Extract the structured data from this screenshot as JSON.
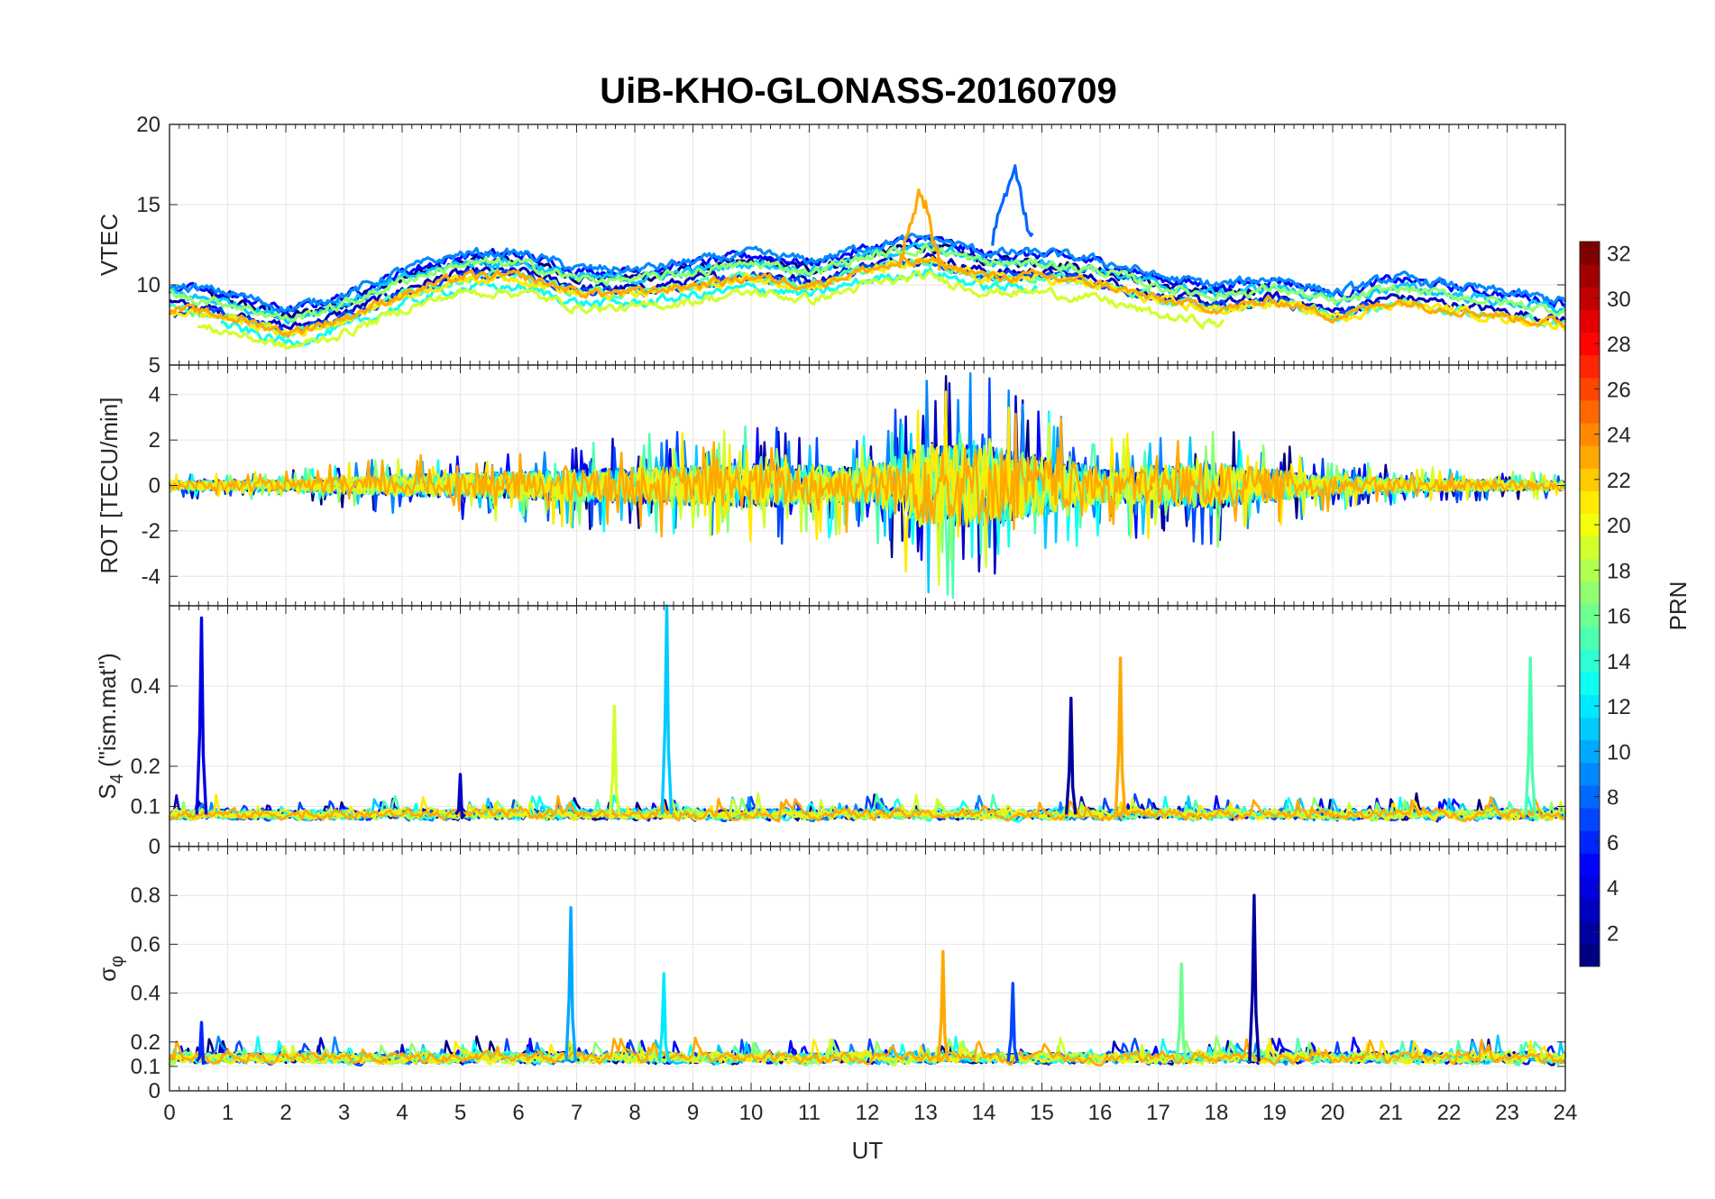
{
  "title": "UiB-KHO-GLONASS-20160709",
  "colorbar": {
    "label": "PRN",
    "ticks": [
      "2",
      "4",
      "6",
      "8",
      "10",
      "12",
      "14",
      "16",
      "18",
      "20",
      "22",
      "24",
      "26",
      "28",
      "30",
      "32"
    ],
    "range": [
      1,
      32
    ],
    "colormap": "jet"
  },
  "chart_data": [
    {
      "type": "line",
      "panel": "VTEC",
      "ylabel": "VTEC",
      "xlim": [
        0,
        24
      ],
      "ylim": [
        5,
        20
      ],
      "xticks": [
        0,
        1,
        2,
        3,
        4,
        5,
        6,
        7,
        8,
        9,
        10,
        11,
        12,
        13,
        14,
        15,
        16,
        17,
        18,
        19,
        20,
        21,
        22,
        23,
        24
      ],
      "yticks": [
        "5",
        "10",
        "15",
        "20"
      ],
      "grid": true,
      "description_of_series": "one line per GLONASS PRN, colour from PRN colourbar",
      "series_envelope": {
        "x": [
          0,
          1,
          2,
          3,
          4,
          5,
          6,
          7,
          8,
          9,
          10,
          11,
          12,
          13,
          14,
          15,
          16,
          17,
          18,
          19,
          20,
          21,
          22,
          23,
          24
        ],
        "typical": [
          9,
          8.5,
          7.5,
          8.5,
          10,
          11,
          11,
          10,
          10,
          10.5,
          11,
          10.5,
          11.5,
          12,
          11,
          11,
          10.5,
          9.5,
          9,
          9.5,
          8.5,
          9.5,
          9,
          8.5,
          8
        ],
        "peaks": [
          {
            "x": 12.9,
            "y": 16.2
          },
          {
            "x": 14.5,
            "y": 17.5
          }
        ]
      }
    },
    {
      "type": "line",
      "panel": "ROT",
      "ylabel": "ROT [TECU/min]",
      "xlim": [
        0,
        24
      ],
      "ylim": [
        -5.3,
        5.3
      ],
      "yticks": [
        "-4",
        "-2",
        "0",
        "2",
        "4"
      ],
      "grid": true,
      "series_envelope": {
        "x": [
          0,
          2,
          4,
          6,
          8,
          10,
          12,
          13,
          14,
          16,
          18,
          20,
          22,
          24
        ],
        "amplitude": [
          0.5,
          0.6,
          1.2,
          1.5,
          2,
          2.5,
          2,
          4.5,
          4.5,
          2,
          2.5,
          1,
          0.7,
          0.5
        ]
      }
    },
    {
      "type": "line",
      "panel": "S4",
      "ylabel": "S4 (\"ism.mat\")",
      "ylabel_main": "S",
      "ylabel_sub": "4",
      "ylabel_rest": " (\"ism.mat\")",
      "xlim": [
        0,
        24
      ],
      "ylim": [
        0,
        0.6
      ],
      "yticks": [
        "0",
        "0.1",
        "0.2",
        "0.4"
      ],
      "grid": true,
      "spikes": [
        {
          "x": 0.55,
          "y": 0.57,
          "prn": 4
        },
        {
          "x": 5.0,
          "y": 0.18,
          "prn": 3
        },
        {
          "x": 7.65,
          "y": 0.35,
          "prn": 19
        },
        {
          "x": 8.55,
          "y": 0.6,
          "prn": 11
        },
        {
          "x": 15.5,
          "y": 0.37,
          "prn": 2
        },
        {
          "x": 16.35,
          "y": 0.47,
          "prn": 23
        },
        {
          "x": 23.4,
          "y": 0.47,
          "prn": 15
        }
      ]
    },
    {
      "type": "line",
      "panel": "sigma_phi",
      "ylabel": "σφ",
      "ylabel_main": "σ",
      "ylabel_sub": "φ",
      "xlabel": "UT",
      "xlim": [
        0,
        24
      ],
      "ylim": [
        0,
        1
      ],
      "yticks": [
        "0",
        "0.1",
        "0.2",
        "0.4",
        "0.6",
        "0.8"
      ],
      "xticks": [
        "0",
        "1",
        "2",
        "3",
        "4",
        "5",
        "6",
        "7",
        "8",
        "9",
        "10",
        "11",
        "12",
        "13",
        "14",
        "15",
        "16",
        "17",
        "18",
        "19",
        "20",
        "21",
        "22",
        "23",
        "24"
      ],
      "grid": true,
      "spikes": [
        {
          "x": 0.55,
          "y": 0.28,
          "prn": 6
        },
        {
          "x": 6.9,
          "y": 0.75,
          "prn": 10
        },
        {
          "x": 8.5,
          "y": 0.48,
          "prn": 12
        },
        {
          "x": 13.3,
          "y": 0.57,
          "prn": 23
        },
        {
          "x": 14.5,
          "y": 0.44,
          "prn": 7
        },
        {
          "x": 17.4,
          "y": 0.52,
          "prn": 16
        },
        {
          "x": 18.65,
          "y": 0.8,
          "prn": 2
        }
      ]
    }
  ]
}
